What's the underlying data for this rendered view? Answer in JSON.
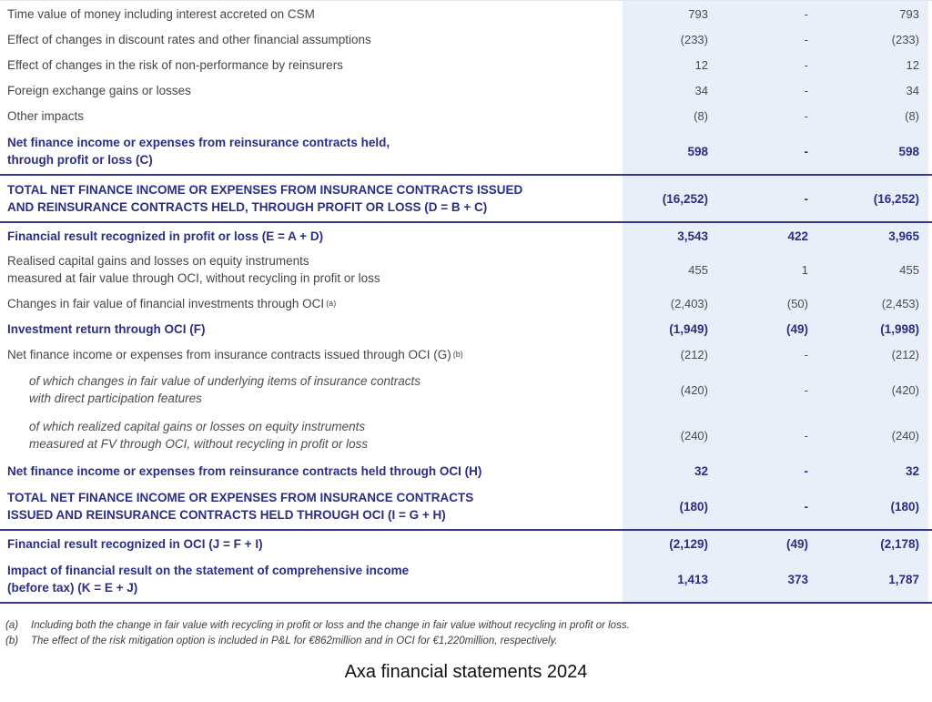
{
  "colors": {
    "navy_accent": "#2a2e85",
    "rule_navy": "#32368c",
    "panel_blue": "#e9eff8",
    "body_text": "#45454c"
  },
  "table": {
    "rows": [
      {
        "label": "Time value of money including interest accreted on CSM",
        "style": "normal",
        "values": [
          "793",
          "-",
          "793"
        ]
      },
      {
        "label": "Effect of changes in discount rates and other financial assumptions",
        "style": "normal",
        "values": [
          "(233)",
          "-",
          "(233)"
        ]
      },
      {
        "label": "Effect of changes in the risk of non-performance by reinsurers",
        "style": "normal",
        "values": [
          "12",
          "-",
          "12"
        ]
      },
      {
        "label": "Foreign exchange gains or losses",
        "style": "normal",
        "values": [
          "34",
          "-",
          "34"
        ]
      },
      {
        "label": "Other impacts",
        "style": "normal",
        "values": [
          "(8)",
          "-",
          "(8)"
        ]
      },
      {
        "label": "Net finance income or expenses from reinsurance contracts held,\nthrough profit or loss (C)",
        "style": "bold",
        "tall": true,
        "rule_below": true,
        "values": [
          "598",
          "-",
          "598"
        ]
      },
      {
        "label": "TOTAL NET FINANCE INCOME OR EXPENSES FROM INSURANCE CONTRACTS ISSUED\nAND REINSURANCE CONTRACTS HELD, THROUGH PROFIT OR LOSS (D = B + C)",
        "style": "bold",
        "tall": true,
        "rule_below": true,
        "values": [
          "(16,252)",
          "-",
          "(16,252)"
        ]
      },
      {
        "label": "Financial result recognized in profit or loss (E = A + D)",
        "style": "bold",
        "values": [
          "3,543",
          "422",
          "3,965"
        ]
      },
      {
        "label": "Realised capital gains and losses on equity instruments\nmeasured at fair value through OCI, without recycling in profit or loss",
        "style": "normal",
        "values": [
          "455",
          "1",
          "455"
        ]
      },
      {
        "label": "Changes in fair value of financial investments through OCI",
        "sup": "(a)",
        "style": "normal",
        "values": [
          "(2,403)",
          "(50)",
          "(2,453)"
        ]
      },
      {
        "label": "Investment return through OCI (F)",
        "style": "bold",
        "values": [
          "(1,949)",
          "(49)",
          "(1,998)"
        ]
      },
      {
        "label": "Net finance income or expenses from insurance contracts issued through OCI (G)",
        "sup": "(b)",
        "style": "normal",
        "values": [
          "(212)",
          "-",
          "(212)"
        ]
      },
      {
        "label": "of which changes in fair value of underlying items of insurance contracts\nwith direct participation features",
        "style": "italic",
        "indent": true,
        "tall": true,
        "values": [
          "(420)",
          "-",
          "(420)"
        ]
      },
      {
        "label": "of which realized capital gains or losses on equity instruments\nmeasured at FV through OCI, without recycling in profit or loss",
        "style": "italic",
        "indent": true,
        "tall": true,
        "values": [
          "(240)",
          "-",
          "(240)"
        ]
      },
      {
        "label": "Net finance income or expenses from reinsurance contracts held through OCI (H)",
        "style": "bold",
        "values": [
          "32",
          "-",
          "32"
        ]
      },
      {
        "label": "TOTAL NET FINANCE INCOME OR EXPENSES FROM INSURANCE CONTRACTS\nISSUED AND REINSURANCE CONTRACTS HELD THROUGH OCI (I = G + H)",
        "style": "bold",
        "tall": true,
        "rule_below": true,
        "values": [
          "(180)",
          "-",
          "(180)"
        ]
      },
      {
        "label": "Financial result recognized in OCI (J = F + I)",
        "style": "bold",
        "values": [
          "(2,129)",
          "(49)",
          "(2,178)"
        ]
      },
      {
        "label": "Impact of financial result on the statement of comprehensive income\n(before tax) (K = E + J)",
        "style": "bold",
        "tall": true,
        "rule_below": true,
        "values": [
          "1,413",
          "373",
          "1,787"
        ]
      }
    ]
  },
  "footnotes": [
    {
      "marker": "(a)",
      "text": "Including both the change in fair value with recycling in profit or loss and the change in fair value without recycling in profit or loss."
    },
    {
      "marker": "(b)",
      "text": "The effect of the risk mitigation option is included in P&L for €862million and in OCI for €1,220million, respectively."
    }
  ],
  "caption": "Axa financial statements 2024"
}
